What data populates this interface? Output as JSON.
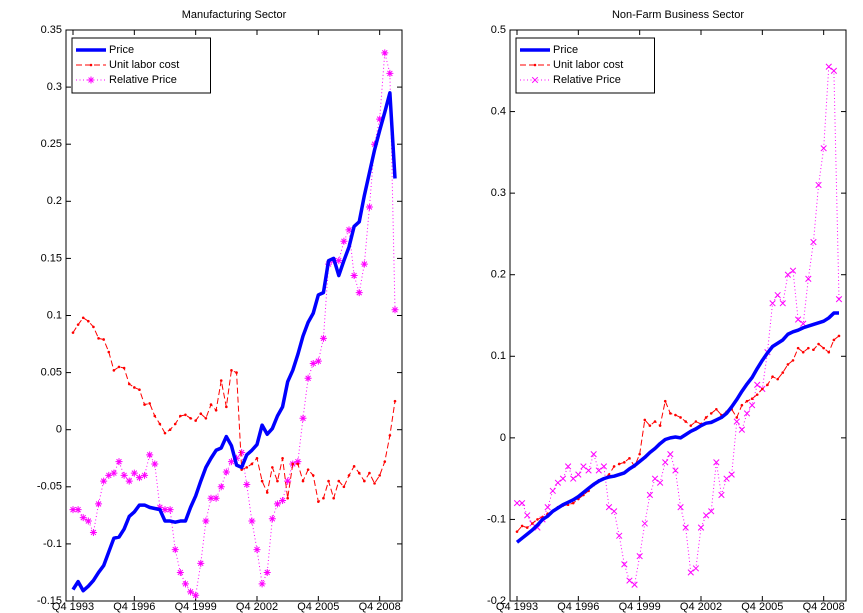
{
  "chart_data": [
    {
      "type": "line",
      "title": "Manufacturing Sector",
      "legend": "upper left",
      "categories": [
        "Q4 1993",
        null,
        null,
        null,
        null,
        null,
        null,
        null,
        null,
        null,
        null,
        null,
        "Q4 1996",
        null,
        null,
        null,
        null,
        null,
        null,
        null,
        null,
        null,
        null,
        null,
        "Q4 1999",
        null,
        null,
        null,
        null,
        null,
        null,
        null,
        null,
        null,
        null,
        null,
        "Q4 2002",
        null,
        null,
        null,
        null,
        null,
        null,
        null,
        null,
        null,
        null,
        null,
        "Q4 2005",
        null,
        null,
        null,
        null,
        null,
        null,
        null,
        null,
        null,
        null,
        null,
        "Q4 2008",
        null,
        null,
        null
      ],
      "ylim": [
        -0.15,
        0.35
      ],
      "yticks": [
        -0.15,
        -0.1,
        -0.05,
        0,
        0.05,
        0.1,
        0.15,
        0.2,
        0.25,
        0.3,
        0.35
      ],
      "series": [
        {
          "name": "Price",
          "color": "#0000ff",
          "line": "solid",
          "marker": "none",
          "values": [
            -0.14,
            -0.133,
            -0.141,
            -0.137,
            -0.132,
            -0.125,
            -0.119,
            -0.107,
            -0.095,
            -0.094,
            -0.087,
            -0.076,
            -0.072,
            -0.066,
            -0.066,
            -0.068,
            -0.069,
            -0.07,
            -0.08,
            -0.08,
            -0.081,
            -0.08,
            -0.08,
            -0.068,
            -0.058,
            -0.045,
            -0.033,
            -0.025,
            -0.018,
            -0.016,
            -0.006,
            -0.014,
            -0.031,
            -0.033,
            -0.022,
            -0.018,
            -0.013,
            0.004,
            -0.004,
            0.001,
            0.012,
            0.02,
            0.042,
            0.052,
            0.066,
            0.082,
            0.094,
            0.102,
            0.118,
            0.12,
            0.148,
            0.15,
            0.135,
            0.148,
            0.16,
            0.178,
            0.182,
            0.205,
            0.225,
            0.245,
            0.262,
            0.278,
            0.295,
            0.22
          ]
        },
        {
          "name": "Unit labor cost",
          "color": "#ff0000",
          "line": "dashed",
          "marker": "point",
          "values": [
            0.085,
            0.092,
            0.098,
            0.095,
            0.09,
            0.08,
            0.079,
            0.068,
            0.052,
            0.055,
            0.054,
            0.04,
            0.037,
            0.035,
            0.022,
            0.023,
            0.012,
            0.005,
            -0.003,
            0.0,
            0.005,
            0.012,
            0.013,
            0.01,
            0.008,
            0.014,
            0.01,
            0.022,
            0.017,
            0.043,
            0.02,
            0.052,
            0.05,
            -0.035,
            -0.033,
            -0.03,
            -0.025,
            -0.045,
            -0.055,
            -0.033,
            -0.045,
            -0.025,
            -0.06,
            -0.03,
            -0.03,
            -0.045,
            -0.035,
            -0.04,
            -0.063,
            -0.06,
            -0.045,
            -0.06,
            -0.045,
            -0.05,
            -0.04,
            -0.032,
            -0.038,
            -0.045,
            -0.038,
            -0.047,
            -0.04,
            -0.028,
            -0.005,
            0.025
          ]
        },
        {
          "name": "Relative Price",
          "color": "#ff00ff",
          "line": "dotted",
          "marker": "star",
          "values": [
            -0.07,
            -0.07,
            -0.077,
            -0.08,
            -0.09,
            -0.065,
            -0.045,
            -0.04,
            -0.038,
            -0.028,
            -0.04,
            -0.045,
            -0.038,
            -0.042,
            -0.04,
            -0.022,
            -0.03,
            -0.068,
            -0.07,
            -0.07,
            -0.105,
            -0.125,
            -0.135,
            -0.142,
            -0.145,
            -0.117,
            -0.08,
            -0.06,
            -0.06,
            -0.05,
            -0.037,
            -0.028,
            -0.025,
            -0.02,
            -0.048,
            -0.08,
            -0.105,
            -0.135,
            -0.125,
            -0.078,
            -0.065,
            -0.062,
            -0.045,
            -0.03,
            -0.028,
            0.01,
            0.045,
            0.058,
            0.06,
            0.08,
            0.145,
            0.148,
            0.148,
            0.165,
            0.175,
            0.135,
            0.12,
            0.145,
            0.195,
            0.25,
            0.272,
            0.33,
            0.312,
            0.105
          ]
        }
      ]
    },
    {
      "type": "line",
      "title": "Non-Farm Business Sector",
      "legend": "upper left",
      "categories": [
        "Q4 1993",
        null,
        null,
        null,
        null,
        null,
        null,
        null,
        null,
        null,
        null,
        null,
        "Q4 1996",
        null,
        null,
        null,
        null,
        null,
        null,
        null,
        null,
        null,
        null,
        null,
        "Q4 1999",
        null,
        null,
        null,
        null,
        null,
        null,
        null,
        null,
        null,
        null,
        null,
        "Q4 2002",
        null,
        null,
        null,
        null,
        null,
        null,
        null,
        null,
        null,
        null,
        null,
        "Q4 2005",
        null,
        null,
        null,
        null,
        null,
        null,
        null,
        null,
        null,
        null,
        null,
        "Q4 2008",
        null,
        null,
        null
      ],
      "ylim": [
        -0.2,
        0.5
      ],
      "yticks": [
        -0.2,
        -0.1,
        0,
        0.1,
        0.2,
        0.3,
        0.4,
        0.5
      ],
      "series": [
        {
          "name": "Price",
          "color": "#0000ff",
          "line": "solid",
          "marker": "none",
          "values": [
            -0.128,
            -0.123,
            -0.118,
            -0.113,
            -0.107,
            -0.1,
            -0.096,
            -0.09,
            -0.086,
            -0.082,
            -0.079,
            -0.076,
            -0.072,
            -0.067,
            -0.062,
            -0.057,
            -0.053,
            -0.05,
            -0.048,
            -0.047,
            -0.045,
            -0.043,
            -0.038,
            -0.034,
            -0.029,
            -0.024,
            -0.018,
            -0.013,
            -0.007,
            -0.002,
            0.0,
            0.001,
            0.0,
            0.004,
            0.008,
            0.011,
            0.015,
            0.018,
            0.019,
            0.022,
            0.025,
            0.03,
            0.038,
            0.047,
            0.057,
            0.066,
            0.074,
            0.085,
            0.095,
            0.104,
            0.112,
            0.116,
            0.12,
            0.127,
            0.13,
            0.132,
            0.135,
            0.137,
            0.139,
            0.141,
            0.143,
            0.147,
            0.153,
            0.153
          ]
        },
        {
          "name": "Unit labor cost",
          "color": "#ff0000",
          "line": "dashed",
          "marker": "point",
          "values": [
            -0.115,
            -0.108,
            -0.11,
            -0.105,
            -0.1,
            -0.097,
            -0.093,
            -0.09,
            -0.085,
            -0.083,
            -0.082,
            -0.08,
            -0.075,
            -0.07,
            -0.065,
            -0.058,
            -0.052,
            -0.05,
            -0.045,
            -0.035,
            -0.032,
            -0.03,
            -0.025,
            -0.035,
            -0.02,
            0.022,
            0.015,
            0.02,
            0.015,
            0.045,
            0.03,
            0.028,
            0.025,
            0.02,
            0.015,
            0.02,
            0.017,
            0.025,
            0.03,
            0.035,
            0.028,
            0.032,
            0.035,
            0.025,
            0.04,
            0.045,
            0.048,
            0.053,
            0.06,
            0.065,
            0.075,
            0.072,
            0.08,
            0.09,
            0.095,
            0.11,
            0.105,
            0.11,
            0.108,
            0.115,
            0.11,
            0.105,
            0.12,
            0.125
          ]
        },
        {
          "name": "Relative Price",
          "color": "#ff00ff",
          "line": "dotted",
          "marker": "x",
          "values": [
            -0.08,
            -0.08,
            -0.095,
            -0.105,
            -0.11,
            -0.1,
            -0.085,
            -0.065,
            -0.055,
            -0.05,
            -0.035,
            -0.05,
            -0.045,
            -0.035,
            -0.04,
            -0.02,
            -0.04,
            -0.035,
            -0.085,
            -0.09,
            -0.12,
            -0.155,
            -0.175,
            -0.18,
            -0.145,
            -0.105,
            -0.07,
            -0.05,
            -0.055,
            -0.03,
            -0.02,
            -0.04,
            -0.085,
            -0.11,
            -0.165,
            -0.16,
            -0.11,
            -0.095,
            -0.09,
            -0.03,
            -0.07,
            -0.05,
            -0.045,
            0.02,
            0.01,
            0.03,
            0.04,
            0.065,
            0.06,
            0.105,
            0.165,
            0.175,
            0.165,
            0.2,
            0.205,
            0.145,
            0.14,
            0.195,
            0.24,
            0.31,
            0.355,
            0.455,
            0.45,
            0.17
          ]
        }
      ]
    }
  ]
}
